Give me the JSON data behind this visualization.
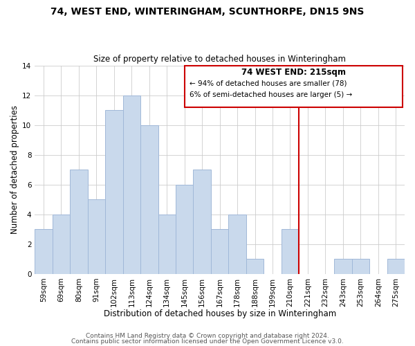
{
  "title": "74, WEST END, WINTERINGHAM, SCUNTHORPE, DN15 9NS",
  "subtitle": "Size of property relative to detached houses in Winteringham",
  "xlabel": "Distribution of detached houses by size in Winteringham",
  "ylabel": "Number of detached properties",
  "bar_labels": [
    "59sqm",
    "69sqm",
    "80sqm",
    "91sqm",
    "102sqm",
    "113sqm",
    "124sqm",
    "134sqm",
    "145sqm",
    "156sqm",
    "167sqm",
    "178sqm",
    "188sqm",
    "199sqm",
    "210sqm",
    "221sqm",
    "232sqm",
    "243sqm",
    "253sqm",
    "264sqm",
    "275sqm"
  ],
  "bar_values": [
    3,
    4,
    7,
    5,
    11,
    12,
    10,
    4,
    6,
    7,
    3,
    4,
    1,
    0,
    3,
    0,
    0,
    1,
    1,
    0,
    1
  ],
  "bar_color": "#c9d9ec",
  "bar_edge_color": "#a0b8d8",
  "grid_color": "#cccccc",
  "vline_x": 14.5,
  "vline_color": "#cc0000",
  "annotation_title": "74 WEST END: 215sqm",
  "annotation_line1": "← 94% of detached houses are smaller (78)",
  "annotation_line2": "6% of semi-detached houses are larger (5) →",
  "annotation_box_color": "#ffffff",
  "annotation_box_edge": "#cc0000",
  "footer_line1": "Contains HM Land Registry data © Crown copyright and database right 2024.",
  "footer_line2": "Contains public sector information licensed under the Open Government Licence v3.0.",
  "ylim": [
    0,
    14
  ],
  "yticks": [
    0,
    2,
    4,
    6,
    8,
    10,
    12,
    14
  ],
  "background_color": "#ffffff",
  "title_fontsize": 10,
  "subtitle_fontsize": 8.5,
  "axis_label_fontsize": 8.5,
  "tick_fontsize": 7.5,
  "annotation_title_fontsize": 8.5,
  "annotation_text_fontsize": 7.5,
  "footer_fontsize": 6.5
}
